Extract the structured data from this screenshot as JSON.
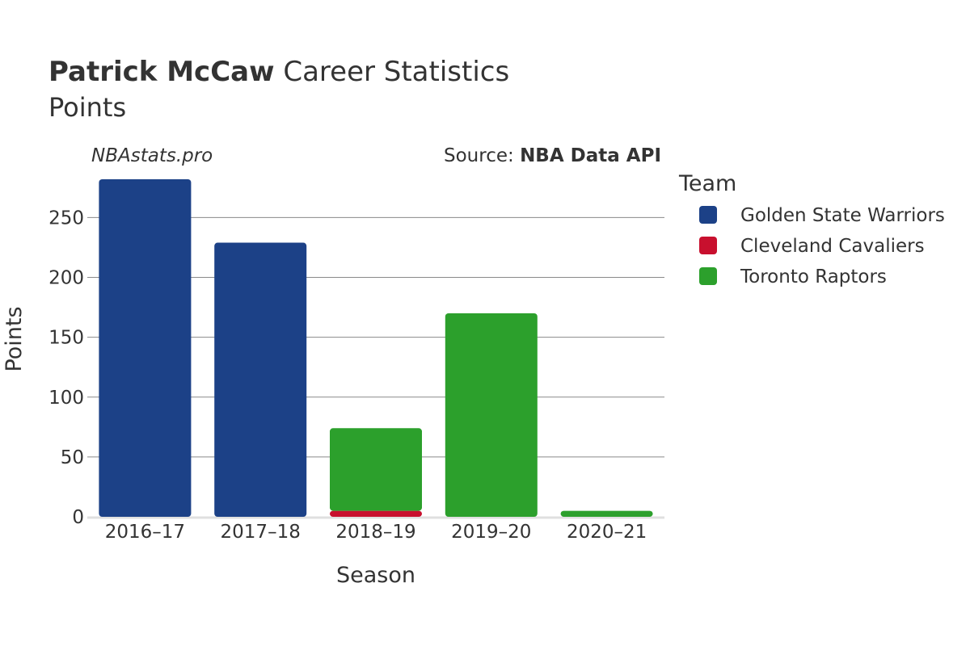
{
  "header": {
    "title_bold": "Patrick McCaw",
    "title_rest": " Career Statistics",
    "subtitle": "Points"
  },
  "watermark": "NBAstats.pro",
  "source": {
    "label": "Source: ",
    "name": "NBA Data API"
  },
  "chart_data": {
    "type": "bar",
    "stacked": true,
    "categories": [
      "2016–17",
      "2017–18",
      "2018–19",
      "2019–20",
      "2020–21"
    ],
    "series": [
      {
        "name": "Golden State Warriors",
        "color": "#1c4187",
        "values": [
          282,
          229,
          0,
          0,
          0
        ]
      },
      {
        "name": "Cleveland Cavaliers",
        "color": "#c8102e",
        "values": [
          0,
          0,
          5,
          0,
          0
        ]
      },
      {
        "name": "Toronto Raptors",
        "color": "#2ca02c",
        "values": [
          0,
          0,
          69,
          170,
          5
        ]
      }
    ],
    "xlabel": "Season",
    "ylabel": "Points",
    "ylim": [
      0,
      282
    ],
    "yticks": [
      0,
      50,
      100,
      150,
      200,
      250
    ],
    "grid": true,
    "legend": {
      "title": "Team",
      "placement": "right"
    }
  }
}
